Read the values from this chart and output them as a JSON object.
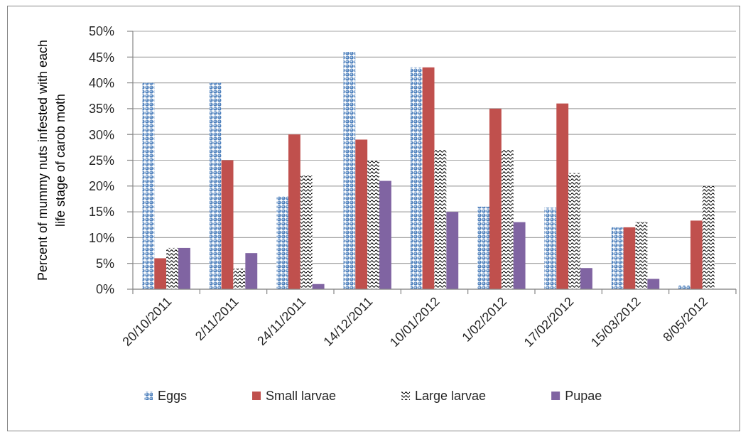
{
  "chart_data": {
    "type": "bar",
    "ylabel": "Percent of mummy nuts infested with each\nlife stage of carob moth",
    "categories": [
      "20/10/2011",
      "2/11/2011",
      "24/11/2011",
      "14/12/2011",
      "10/01/2012",
      "1/02/2012",
      "17/02/2012",
      "15/03/2012",
      "8/05/2012"
    ],
    "series": [
      {
        "name": "Eggs",
        "color": "#4f81bd",
        "values": [
          40,
          40,
          18,
          46,
          43,
          16,
          15.8,
          12,
          0.8
        ]
      },
      {
        "name": "Small larvae",
        "color": "#c0504d",
        "values": [
          6,
          25,
          30,
          29,
          43,
          35,
          36,
          12,
          13.3
        ]
      },
      {
        "name": "Large larvae",
        "color": "#000000",
        "values": [
          8,
          4,
          22,
          25,
          27,
          27,
          22.5,
          13,
          20
        ]
      },
      {
        "name": "Pupae",
        "color": "#8064a2",
        "values": [
          8,
          7,
          1,
          21,
          15,
          13,
          4.1,
          2,
          null
        ]
      }
    ],
    "ylim": [
      0,
      50
    ],
    "yticks": [
      {
        "value": 0,
        "label": "0%"
      },
      {
        "value": 5,
        "label": "5%"
      },
      {
        "value": 10,
        "label": "10%"
      },
      {
        "value": 15,
        "label": "15%"
      },
      {
        "value": 20,
        "label": "20%"
      },
      {
        "value": 25,
        "label": "25%"
      },
      {
        "value": 30,
        "label": "30%"
      },
      {
        "value": 35,
        "label": "35%"
      },
      {
        "value": 40,
        "label": "40%"
      },
      {
        "value": 45,
        "label": "45%"
      },
      {
        "value": 50,
        "label": "50%"
      }
    ],
    "grid": "y",
    "legend": "bottom"
  }
}
